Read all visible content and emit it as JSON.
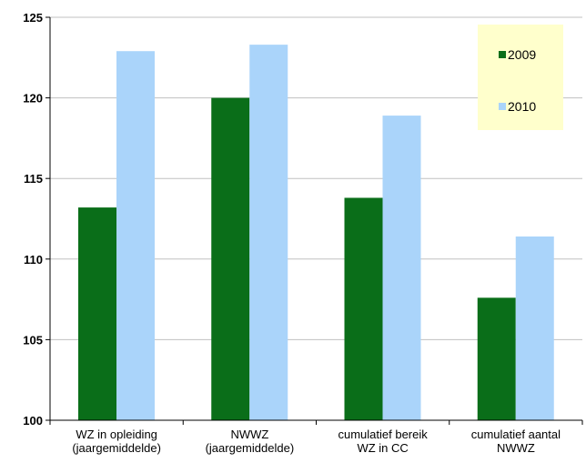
{
  "chart_data": {
    "type": "bar",
    "categories": [
      [
        "WZ in opleiding",
        "(jaargemiddelde)"
      ],
      [
        "NWWZ",
        "(jaargemiddelde)"
      ],
      [
        "cumulatief bereik",
        "WZ in CC"
      ],
      [
        "cumulatief aantal",
        "NWWZ"
      ]
    ],
    "series": [
      {
        "name": "2009",
        "values": [
          113.2,
          120.0,
          113.8,
          107.6
        ],
        "color": "#0a6e19"
      },
      {
        "name": "2010",
        "values": [
          122.9,
          123.3,
          118.9,
          111.4
        ],
        "color": "#aad4fa"
      }
    ],
    "ylim": [
      100,
      125
    ],
    "yticks": [
      "100",
      "105",
      "110",
      "115",
      "120",
      "125"
    ],
    "title": "",
    "xlabel": "",
    "ylabel": "",
    "grid": true,
    "legend_position": "top-right",
    "legend_background": "#ffffcc",
    "grid_color": "#c0c0c0"
  }
}
